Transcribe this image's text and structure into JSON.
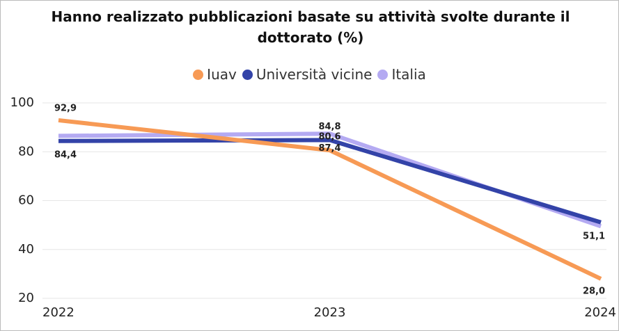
{
  "chart_data": {
    "type": "line",
    "title": "Hanno realizzato pubblicazioni basate su attività svolte durante il dottorato (%)",
    "categories": [
      "2022",
      "2023",
      "2024"
    ],
    "series": [
      {
        "name": "Iuav",
        "color": "#f79a55",
        "values": [
          92.9,
          80.6,
          28.0
        ],
        "value_labels": [
          "92,9",
          "80,6",
          "28,0"
        ]
      },
      {
        "name": "Università vicine",
        "color": "#3343a8",
        "values": [
          84.4,
          84.8,
          51.1
        ],
        "value_labels": [
          "84,4",
          "84,8",
          "51,1"
        ]
      },
      {
        "name": "Italia",
        "color": "#b4aaf2",
        "values": [
          86.5,
          87.4,
          49.5
        ],
        "value_labels": [
          null,
          "87,4",
          null
        ]
      }
    ],
    "ylim": [
      20,
      100
    ],
    "yticks": [
      20,
      40,
      60,
      80,
      100
    ],
    "grid": true,
    "legend": "top"
  }
}
